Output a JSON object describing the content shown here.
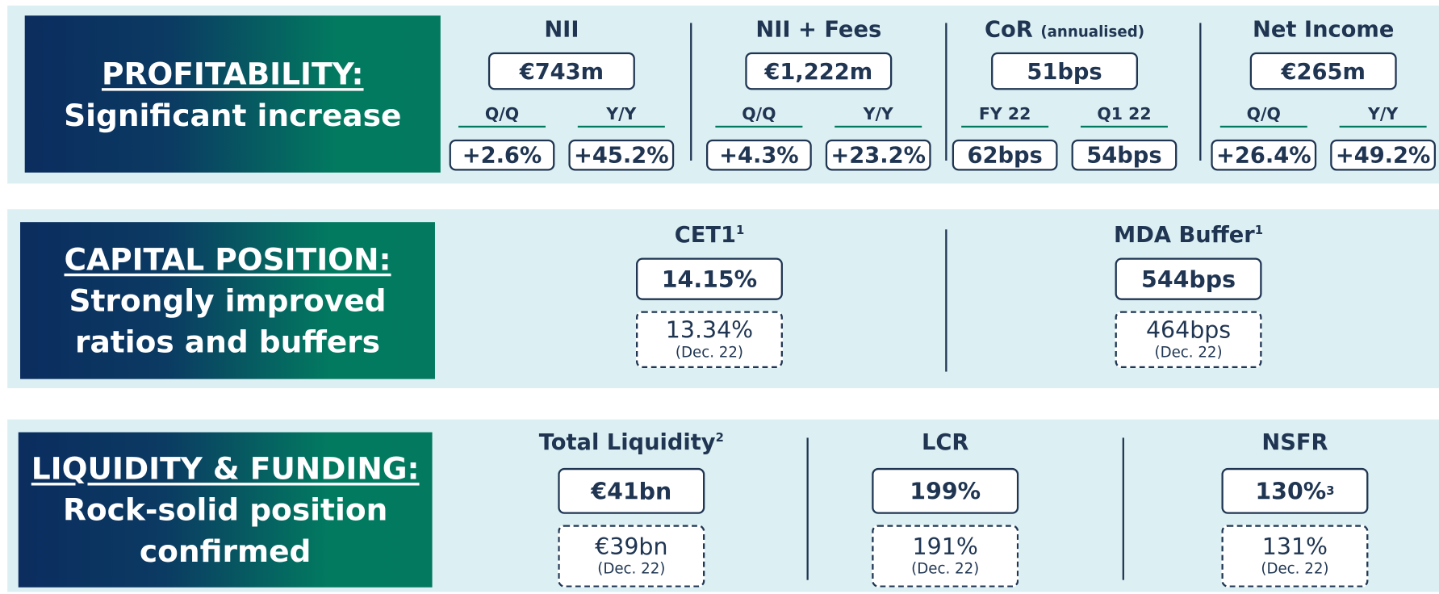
{
  "sections": [
    {
      "title": "PROFITABILITY:",
      "subtitle_lines": [
        "Significant increase"
      ],
      "metrics": [
        {
          "label": "NII",
          "value": "€743m",
          "comparisons": [
            {
              "label": "Q/Q",
              "value": "+2.6%"
            },
            {
              "label": "Y/Y",
              "value": "+45.2%"
            }
          ]
        },
        {
          "label": "NII + Fees",
          "value": "€1,222m",
          "comparisons": [
            {
              "label": "Q/Q",
              "value": "+4.3%"
            },
            {
              "label": "Y/Y",
              "value": "+23.2%"
            }
          ]
        },
        {
          "label": "CoR",
          "label_note": "(annualised)",
          "value": "51bps",
          "comparisons": [
            {
              "label": "FY 22",
              "value": "62bps"
            },
            {
              "label": "Q1 22",
              "value": "54bps"
            }
          ]
        },
        {
          "label": "Net Income",
          "value": "€265m",
          "comparisons": [
            {
              "label": "Q/Q",
              "value": "+26.4%"
            },
            {
              "label": "Y/Y",
              "value": "+49.2%"
            }
          ]
        }
      ]
    },
    {
      "title": "CAPITAL POSITION:",
      "subtitle_lines": [
        "Strongly improved",
        "ratios and buffers"
      ],
      "metrics": [
        {
          "label": "CET1",
          "label_footnote": "1",
          "value": "14.15%",
          "prior_value": "13.34%",
          "prior_label": "(Dec. 22)"
        },
        {
          "label": "MDA Buffer",
          "label_footnote": "1",
          "value": "544bps",
          "prior_value": "464bps",
          "prior_label": "(Dec. 22)"
        }
      ]
    },
    {
      "title": "LIQUIDITY & FUNDING:",
      "subtitle_lines": [
        "Rock-solid position",
        "confirmed"
      ],
      "metrics": [
        {
          "label": "Total Liquidity",
          "label_footnote": "2",
          "value": "€41bn",
          "prior_value": "€39bn",
          "prior_label": "(Dec. 22)"
        },
        {
          "label": "LCR",
          "value": "199%",
          "prior_value": "191%",
          "prior_label": "(Dec. 22)"
        },
        {
          "label": "NSFR",
          "value": "130%",
          "value_footnote": "3",
          "prior_value": "131%",
          "prior_label": "(Dec. 22)"
        }
      ]
    }
  ]
}
